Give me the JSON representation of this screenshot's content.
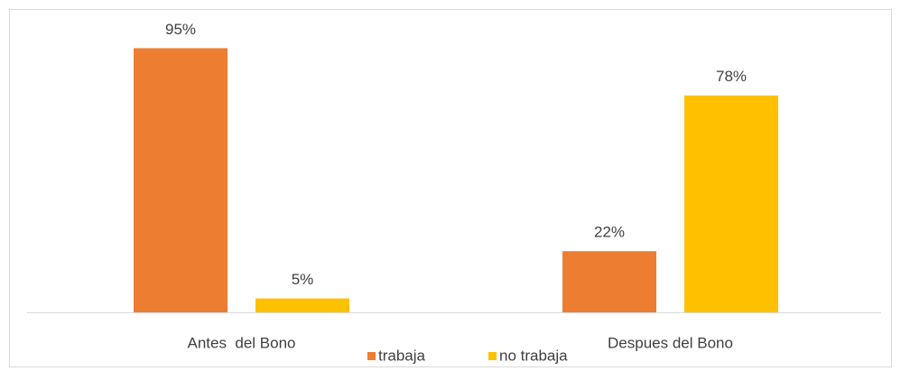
{
  "chart_data": {
    "type": "bar",
    "categories": [
      "Antes  del Bono",
      "Despues del Bono"
    ],
    "series": [
      {
        "name": "trabaja",
        "color": "#ed7d31",
        "values": [
          95,
          22
        ],
        "value_labels": [
          "95%",
          "22%"
        ]
      },
      {
        "name": "no trabaja",
        "color": "#ffc000",
        "values": [
          5,
          78
        ],
        "value_labels": [
          "5%",
          "78%"
        ]
      }
    ],
    "ylim": [
      0,
      100
    ],
    "legend": "bottom"
  }
}
